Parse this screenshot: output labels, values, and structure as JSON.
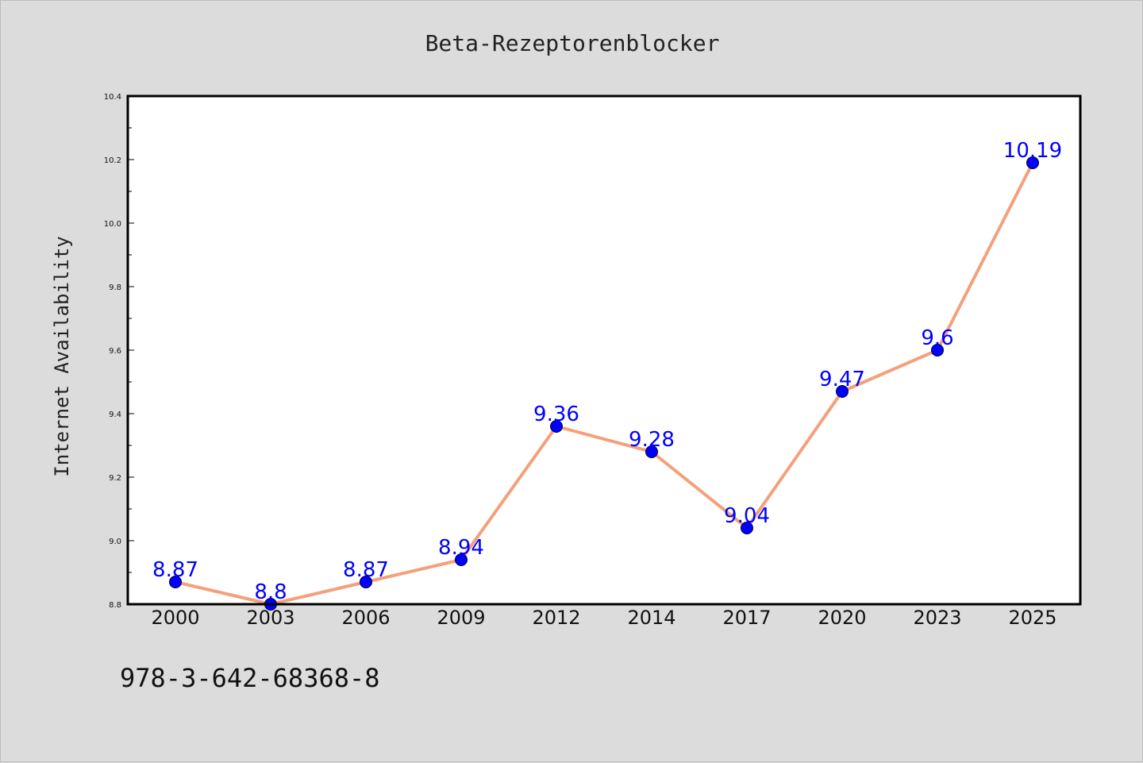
{
  "chart_data": {
    "type": "line",
    "title": "Beta-Rezeptorenblocker",
    "xlabel": "",
    "ylabel": "Internet Availability",
    "categories": [
      "2000",
      "2003",
      "2006",
      "2009",
      "2012",
      "2014",
      "2017",
      "2020",
      "2023",
      "2025"
    ],
    "series": [
      {
        "values": [
          8.87,
          8.8,
          8.87,
          8.94,
          9.36,
          9.28,
          9.04,
          9.47,
          9.6,
          10.19
        ]
      }
    ],
    "data_labels": [
      "8.87",
      "8.8",
      "8.87",
      "8.94",
      "9.36",
      "9.28",
      "9.04",
      "9.47",
      "9.6",
      "10.19"
    ],
    "ylim": [
      8.8,
      10.4
    ],
    "yticks": [
      "8.8",
      "9.0",
      "9.2",
      "9.4",
      "9.6",
      "9.8",
      "10.0",
      "10.2",
      "10.4"
    ],
    "grid": false,
    "line_color": "#f4a07a",
    "marker_color": "#0000ff",
    "label_color": "#0000ff",
    "background": "#dcdcdc",
    "plot_background": "#ffffff"
  },
  "footer": {
    "code": "978-3-642-68368-8"
  }
}
